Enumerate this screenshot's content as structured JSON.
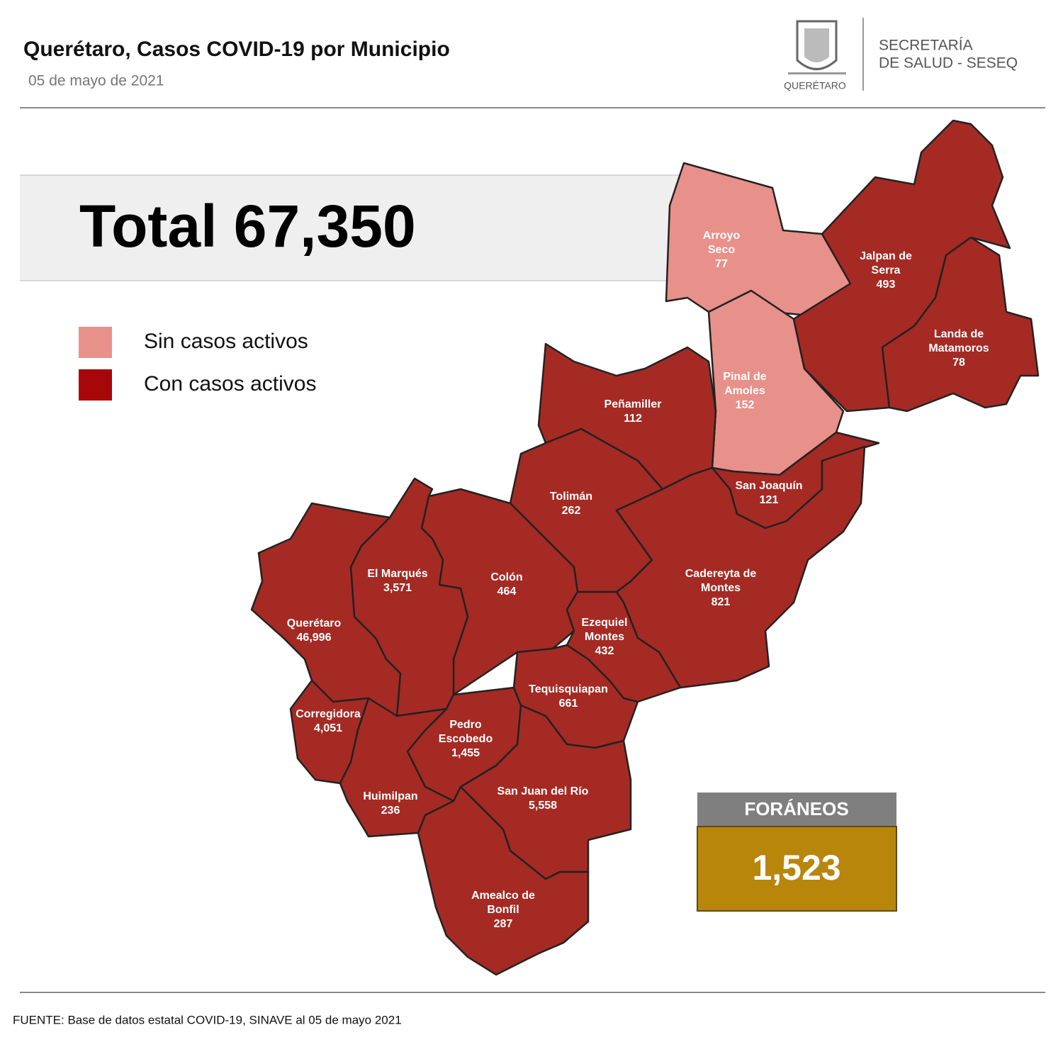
{
  "header": {
    "title": "Querétaro, Casos COVID-19 por Municipio",
    "date": "05 de mayo de 2021",
    "logo_text": "QUERÉTARO",
    "agency": [
      "SECRETARÍA",
      "DE SALUD - SESEQ"
    ]
  },
  "total": "Total 67,350",
  "legend": [
    {
      "label": "Sin casos activos",
      "color": "#e8908a"
    },
    {
      "label": "Con casos activos",
      "color": "#a8070a"
    }
  ],
  "regions": [
    {
      "name": [
        "Arroyo",
        "Seco"
      ],
      "value": "77"
    },
    {
      "name": [
        "Pinal de",
        "Amoles"
      ],
      "value": "152"
    },
    {
      "name": [
        "Jalpan de",
        "Serra"
      ],
      "value": "493"
    },
    {
      "name": [
        "Landa de",
        "Matamoros"
      ],
      "value": "78"
    },
    {
      "name": [
        "Peñamiller"
      ],
      "value": "112"
    },
    {
      "name": [
        "San Joaquín"
      ],
      "value": "121"
    },
    {
      "name": [
        "Tolimán"
      ],
      "value": "262"
    },
    {
      "name": [
        "Cadereyta de",
        "Montes"
      ],
      "value": "821"
    },
    {
      "name": [
        "Colón"
      ],
      "value": "464"
    },
    {
      "name": [
        "El  Marqués"
      ],
      "value": "3,571"
    },
    {
      "name": [
        "Querétaro"
      ],
      "value": "46,996"
    },
    {
      "name": [
        "Ezequiel",
        "Montes"
      ],
      "value": "432"
    },
    {
      "name": [
        "Tequisquiapan"
      ],
      "value": "661"
    },
    {
      "name": [
        "Corregidora"
      ],
      "value": "4,051"
    },
    {
      "name": [
        "Pedro",
        "Escobedo"
      ],
      "value": "1,455"
    },
    {
      "name": [
        "Huimilpan"
      ],
      "value": "236"
    },
    {
      "name": [
        "San Juan del Río"
      ],
      "value": "5,558"
    },
    {
      "name": [
        "Amealco de",
        "Bonfil"
      ],
      "value": "287"
    }
  ],
  "foraneos": {
    "label": "FORÁNEOS",
    "value": "1,523"
  },
  "footer": "FUENTE:  Base de datos estatal COVID-19,  SINAVE  al 05 de mayo 2021"
}
